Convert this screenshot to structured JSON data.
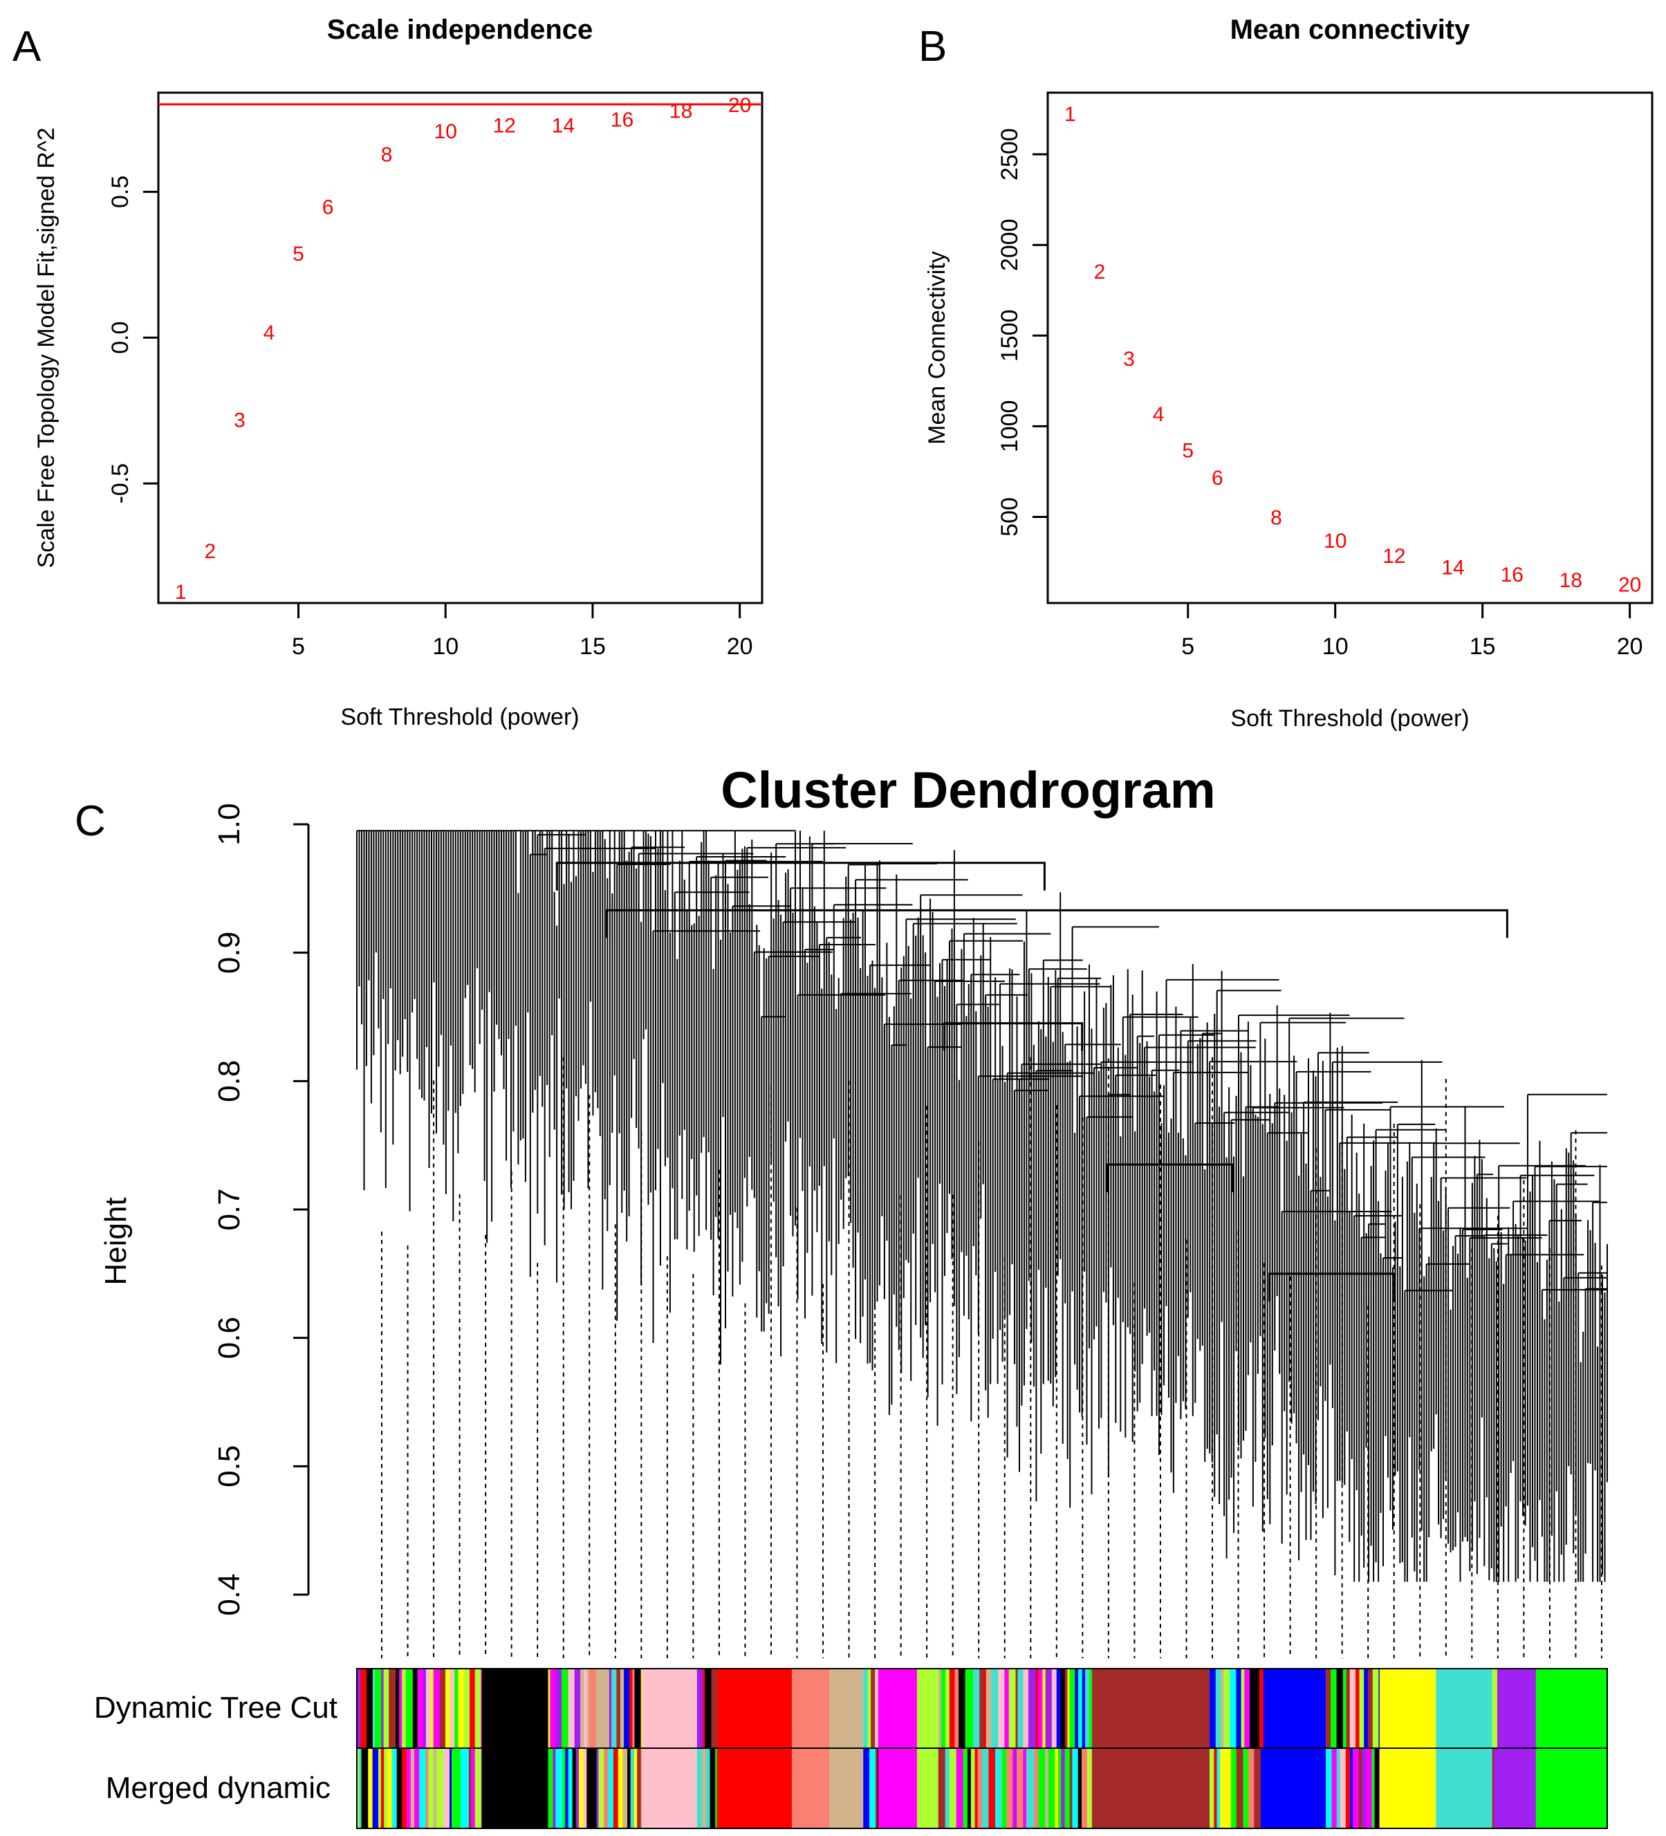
{
  "chart_data": [
    {
      "panel_label": "A",
      "type": "scatter",
      "marker": "text-labels",
      "title": "Scale independence",
      "xlabel": "Soft Threshold (power)",
      "ylabel": "Scale Free Topology Model Fit,signed R^2",
      "x": [
        1,
        2,
        3,
        4,
        5,
        6,
        8,
        10,
        12,
        14,
        16,
        18,
        20
      ],
      "y": [
        -0.87,
        -0.73,
        -0.28,
        0.02,
        0.29,
        0.45,
        0.63,
        0.71,
        0.73,
        0.73,
        0.75,
        0.78,
        0.8
      ],
      "point_labels": [
        "1",
        "2",
        "3",
        "4",
        "5",
        "6",
        "8",
        "10",
        "12",
        "14",
        "16",
        "18",
        "20"
      ],
      "xlim": [
        0.24,
        20.76
      ],
      "ylim": [
        -0.91,
        0.84
      ],
      "xticks": [
        5,
        10,
        15,
        20
      ],
      "yticks": [
        -0.5,
        0.0,
        0.5
      ],
      "ytick_labels": [
        "-0.5",
        "0.0",
        "0.5"
      ],
      "reference_line": {
        "y": 0.8,
        "color": "#ff0000"
      },
      "point_color": "#ff0000"
    },
    {
      "panel_label": "B",
      "type": "scatter",
      "marker": "text-labels",
      "title": "Mean connectivity",
      "xlabel": "Soft Threshold (power)",
      "ylabel": "Mean Connectivity",
      "x": [
        1,
        2,
        3,
        4,
        5,
        6,
        8,
        10,
        12,
        14,
        16,
        18,
        20
      ],
      "y": [
        2725,
        1855,
        1375,
        1070,
        870,
        720,
        500,
        372,
        288,
        225,
        185,
        155,
        130
      ],
      "point_labels": [
        "1",
        "2",
        "3",
        "4",
        "5",
        "6",
        "8",
        "10",
        "12",
        "14",
        "16",
        "18",
        "20"
      ],
      "xlim": [
        0.24,
        20.76
      ],
      "ylim": [
        25,
        2840
      ],
      "xticks": [
        5,
        10,
        15,
        20
      ],
      "yticks": [
        500,
        1000,
        1500,
        2000,
        2500
      ],
      "ytick_labels": [
        "500",
        "1000",
        "1500",
        "2000",
        "2500"
      ],
      "point_color": "#ff0000"
    },
    {
      "panel_label": "C",
      "type": "dendrogram",
      "title": "Cluster Dendrogram",
      "ylabel": "Height",
      "ylim": [
        0.4,
        1.0
      ],
      "yticks": [
        0.4,
        0.5,
        0.6,
        0.7,
        0.8,
        0.9,
        1.0
      ],
      "ytick_labels": [
        "0.4",
        "0.5",
        "0.6",
        "0.7",
        "0.8",
        "0.9",
        "1.0"
      ],
      "top_merges": [
        {
          "from": 0.16,
          "to": 0.55,
          "height": 0.97
        },
        {
          "from": 0.2,
          "to": 0.92,
          "height": 0.933
        },
        {
          "from": 0.47,
          "to": 0.58,
          "height": 0.845
        },
        {
          "from": 0.6,
          "to": 0.7,
          "height": 0.735
        },
        {
          "from": 0.73,
          "to": 0.83,
          "height": 0.65
        }
      ],
      "color_bar_rows": [
        "Dynamic Tree Cut",
        "Merged dynamic"
      ],
      "modules": [
        {
          "color": "#000000",
          "start": 0.1,
          "end": 0.153
        },
        {
          "color": "#ffc0cb",
          "start": 0.228,
          "end": 0.272
        },
        {
          "color": "#ff0000",
          "start": 0.288,
          "end": 0.348
        },
        {
          "color": "#fa8072",
          "start": 0.348,
          "end": 0.378
        },
        {
          "color": "#d2b48c",
          "start": 0.378,
          "end": 0.405
        },
        {
          "color": "#ff00ff",
          "start": 0.417,
          "end": 0.448
        },
        {
          "color": "#adff2f",
          "start": 0.448,
          "end": 0.465
        },
        {
          "color": "#a52a2a",
          "start": 0.588,
          "end": 0.682
        },
        {
          "color": "#0000ff",
          "start": 0.725,
          "end": 0.775
        },
        {
          "color": "#ffff00",
          "start": 0.818,
          "end": 0.863
        },
        {
          "color": "#40e0d0",
          "start": 0.863,
          "end": 0.908
        },
        {
          "color": "#a020f0",
          "start": 0.912,
          "end": 0.943
        },
        {
          "color": "#00ff00",
          "start": 0.943,
          "end": 1.0
        }
      ],
      "mixed_colors": [
        "#0000ff",
        "#40e0d0",
        "#ffff00",
        "#a020f0",
        "#00ff00",
        "#ff0000",
        "#ffc0cb",
        "#a52a2a",
        "#adff2f",
        "#ff00ff",
        "#000000",
        "#d2b48c",
        "#fa8072",
        "#00ffff"
      ]
    }
  ]
}
